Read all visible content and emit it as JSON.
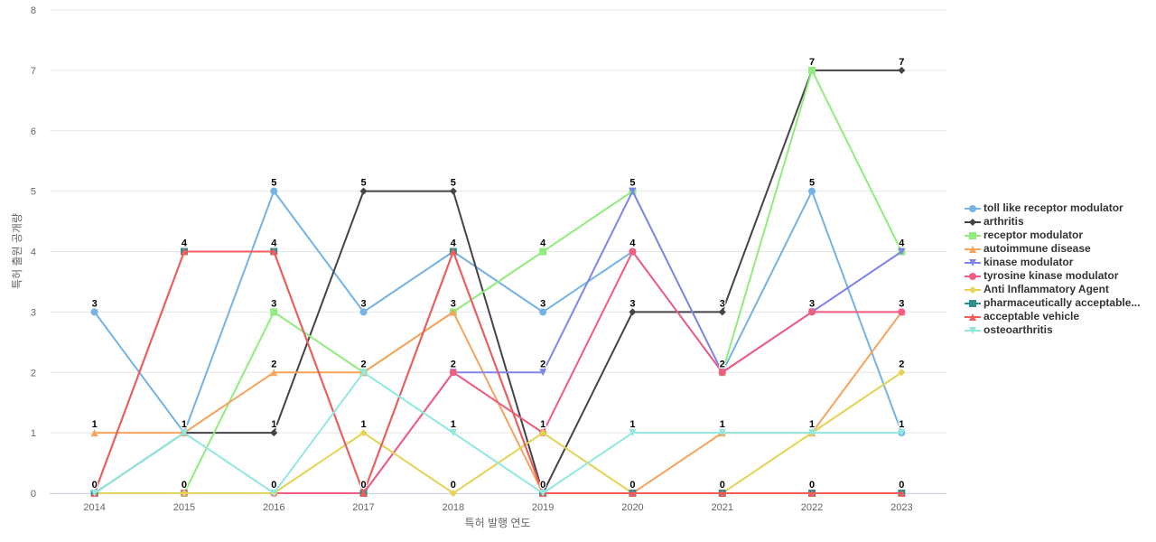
{
  "chart_data": {
    "type": "line",
    "xlabel": "특허 발행 연도",
    "ylabel": "특허 출원 공개량",
    "x": [
      "2014",
      "2015",
      "2016",
      "2017",
      "2018",
      "2019",
      "2020",
      "2021",
      "2022",
      "2023"
    ],
    "ylim": [
      0,
      8
    ],
    "yticks": [
      0,
      1,
      2,
      3,
      4,
      5,
      6,
      7,
      8
    ],
    "grid": true,
    "legend_position": "right",
    "series": [
      {
        "name": "toll like receptor modulator",
        "color": "#74b3e3",
        "marker": "circle",
        "values": [
          3,
          1,
          5,
          3,
          4,
          3,
          4,
          2,
          5,
          1
        ]
      },
      {
        "name": "arthritis",
        "color": "#434348",
        "marker": "diamond",
        "values": [
          0,
          1,
          1,
          5,
          5,
          0,
          3,
          3,
          7,
          7
        ]
      },
      {
        "name": "receptor modulator",
        "color": "#90ed7d",
        "marker": "square",
        "values": [
          0,
          0,
          3,
          2,
          3,
          4,
          5,
          2,
          7,
          4
        ]
      },
      {
        "name": "autoimmune disease",
        "color": "#f7a35c",
        "marker": "triangle",
        "values": [
          1,
          1,
          2,
          2,
          3,
          0,
          0,
          1,
          1,
          3
        ]
      },
      {
        "name": "kinase modulator",
        "color": "#8085e9",
        "marker": "triangle-down",
        "values": [
          0,
          0,
          0,
          0,
          2,
          2,
          5,
          2,
          3,
          4
        ]
      },
      {
        "name": "tyrosine kinase modulator",
        "color": "#f15c80",
        "marker": "circle",
        "values": [
          0,
          0,
          0,
          0,
          2,
          1,
          4,
          2,
          3,
          3
        ]
      },
      {
        "name": "Anti Inflammatory Agent",
        "color": "#e4d354",
        "marker": "diamond",
        "values": [
          0,
          0,
          0,
          1,
          0,
          1,
          0,
          0,
          1,
          2
        ]
      },
      {
        "name": "pharmaceutically acceptable...",
        "color": "#2b908f",
        "marker": "square",
        "values": [
          0,
          4,
          4,
          0,
          4,
          0,
          0,
          0,
          0,
          0
        ]
      },
      {
        "name": "acceptable vehicle",
        "color": "#f45b5b",
        "marker": "triangle",
        "values": [
          0,
          4,
          4,
          0,
          4,
          0,
          0,
          0,
          0,
          0
        ]
      },
      {
        "name": "osteoarthritis",
        "color": "#91e8e1",
        "marker": "triangle-down",
        "values": [
          0,
          1,
          0,
          2,
          1,
          0,
          1,
          1,
          1,
          1
        ]
      }
    ],
    "data_labels": [
      {
        "x": "2014",
        "y": 3,
        "text": "3"
      },
      {
        "x": "2014",
        "y": 1,
        "text": "1"
      },
      {
        "x": "2014",
        "y": 0,
        "text": "0"
      },
      {
        "x": "2015",
        "y": 4,
        "text": "4"
      },
      {
        "x": "2015",
        "y": 1,
        "text": "1"
      },
      {
        "x": "2015",
        "y": 0,
        "text": "0"
      },
      {
        "x": "2016",
        "y": 5,
        "text": "5"
      },
      {
        "x": "2016",
        "y": 4,
        "text": "4"
      },
      {
        "x": "2016",
        "y": 3,
        "text": "3"
      },
      {
        "x": "2016",
        "y": 2,
        "text": "2"
      },
      {
        "x": "2016",
        "y": 1,
        "text": "1"
      },
      {
        "x": "2016",
        "y": 0,
        "text": "0"
      },
      {
        "x": "2017",
        "y": 5,
        "text": "5"
      },
      {
        "x": "2017",
        "y": 3,
        "text": "3"
      },
      {
        "x": "2017",
        "y": 2,
        "text": "2"
      },
      {
        "x": "2017",
        "y": 1,
        "text": "1"
      },
      {
        "x": "2017",
        "y": 0,
        "text": "0"
      },
      {
        "x": "2018",
        "y": 5,
        "text": "5"
      },
      {
        "x": "2018",
        "y": 4,
        "text": "4"
      },
      {
        "x": "2018",
        "y": 3,
        "text": "3"
      },
      {
        "x": "2018",
        "y": 2,
        "text": "2"
      },
      {
        "x": "2018",
        "y": 1,
        "text": "1"
      },
      {
        "x": "2018",
        "y": 0,
        "text": "0"
      },
      {
        "x": "2019",
        "y": 4,
        "text": "4"
      },
      {
        "x": "2019",
        "y": 3,
        "text": "3"
      },
      {
        "x": "2019",
        "y": 2,
        "text": "2"
      },
      {
        "x": "2019",
        "y": 1,
        "text": "1"
      },
      {
        "x": "2019",
        "y": 0,
        "text": "0"
      },
      {
        "x": "2020",
        "y": 5,
        "text": "5"
      },
      {
        "x": "2020",
        "y": 4,
        "text": "4"
      },
      {
        "x": "2020",
        "y": 3,
        "text": "3"
      },
      {
        "x": "2020",
        "y": 1,
        "text": "1"
      },
      {
        "x": "2020",
        "y": 0,
        "text": "0"
      },
      {
        "x": "2021",
        "y": 3,
        "text": "3"
      },
      {
        "x": "2021",
        "y": 2,
        "text": "2"
      },
      {
        "x": "2021",
        "y": 1,
        "text": "1"
      },
      {
        "x": "2021",
        "y": 0,
        "text": "0"
      },
      {
        "x": "2022",
        "y": 7,
        "text": "7"
      },
      {
        "x": "2022",
        "y": 5,
        "text": "5"
      },
      {
        "x": "2022",
        "y": 3,
        "text": "3"
      },
      {
        "x": "2022",
        "y": 1,
        "text": "1"
      },
      {
        "x": "2022",
        "y": 0,
        "text": "0"
      },
      {
        "x": "2023",
        "y": 7,
        "text": "7"
      },
      {
        "x": "2023",
        "y": 4,
        "text": "4"
      },
      {
        "x": "2023",
        "y": 3,
        "text": "3"
      },
      {
        "x": "2023",
        "y": 2,
        "text": "2"
      },
      {
        "x": "2023",
        "y": 1,
        "text": "1"
      },
      {
        "x": "2023",
        "y": 0,
        "text": "0"
      }
    ]
  }
}
